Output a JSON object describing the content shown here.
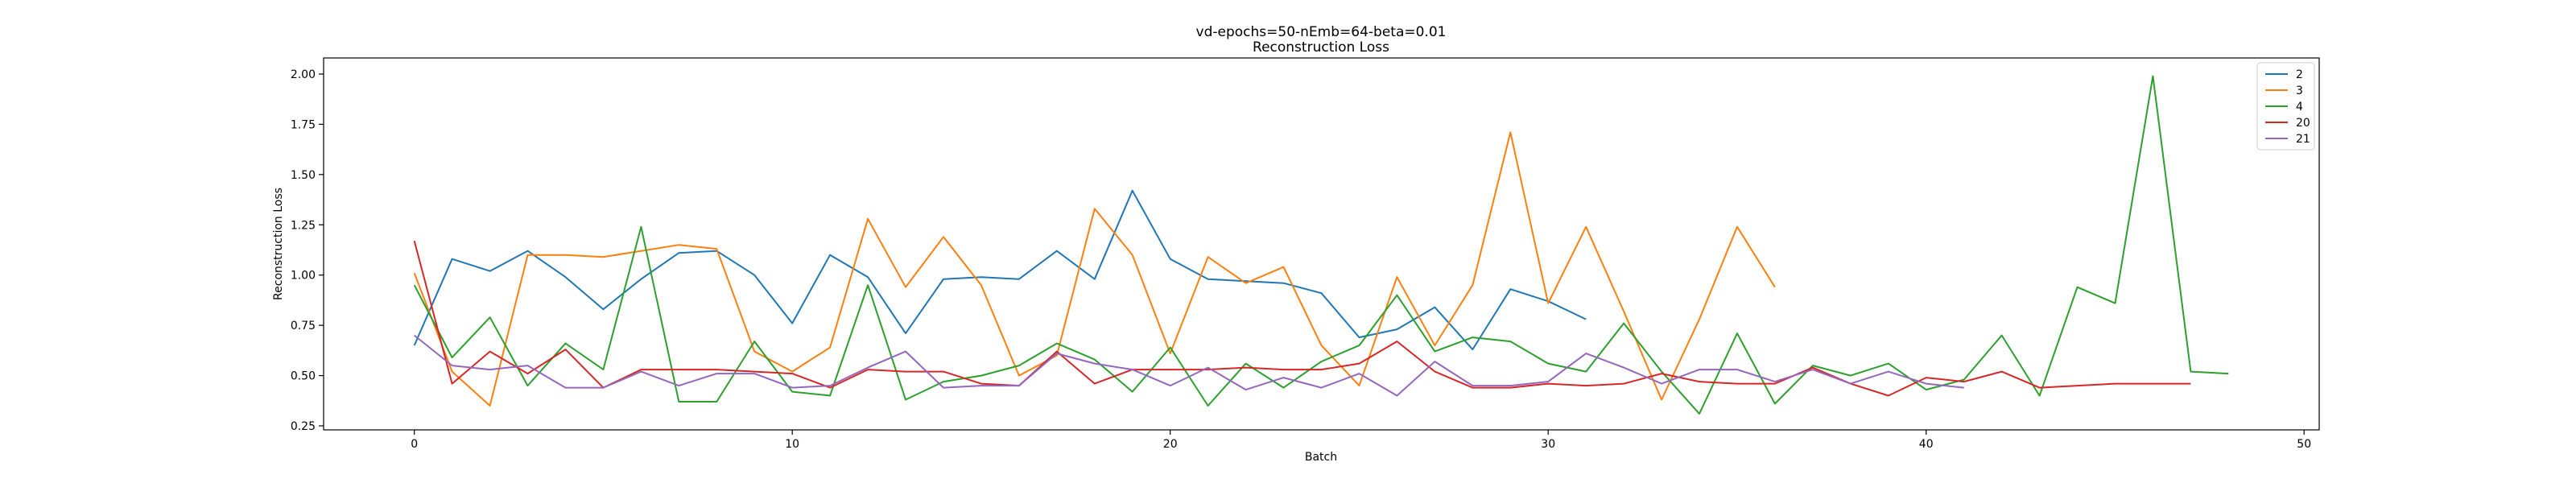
{
  "chart_data": {
    "type": "line",
    "title": "vd-epochs=50-nEmb=64-beta=0.01",
    "subtitle": "Reconstruction Loss",
    "xlabel": "Batch",
    "ylabel": "Reconstruction Loss",
    "xlim": [
      -2.4,
      50.4
    ],
    "ylim": [
      0.23,
      2.08
    ],
    "xticks": [
      0,
      10,
      20,
      30,
      40,
      50
    ],
    "yticks": [
      0.25,
      0.5,
      0.75,
      1.0,
      1.25,
      1.5,
      1.75,
      2.0
    ],
    "xtick_labels": [
      "0",
      "10",
      "20",
      "30",
      "40",
      "50"
    ],
    "ytick_labels": [
      "0.25",
      "0.50",
      "0.75",
      "1.00",
      "1.25",
      "1.50",
      "1.75",
      "2.00"
    ],
    "grid": false,
    "legend_position": "top-right",
    "series": [
      {
        "name": "2",
        "color": "#1f77b4",
        "values": [
          0.65,
          1.08,
          1.02,
          1.12,
          0.99,
          0.83,
          0.98,
          1.11,
          1.12,
          1.0,
          0.76,
          1.1,
          0.99,
          0.71,
          0.98,
          0.99,
          0.98,
          1.12,
          0.98,
          1.42,
          1.08,
          0.98,
          0.97,
          0.96,
          0.91,
          0.69,
          0.73,
          0.84,
          0.63,
          0.93,
          0.87,
          0.78
        ]
      },
      {
        "name": "3",
        "color": "#ff7f0e",
        "values": [
          1.01,
          0.52,
          0.35,
          1.1,
          1.1,
          1.09,
          1.12,
          1.15,
          1.13,
          0.62,
          0.52,
          0.64,
          1.28,
          0.94,
          1.19,
          0.95,
          0.5,
          0.6,
          1.33,
          1.1,
          0.61,
          1.09,
          0.96,
          1.04,
          0.65,
          0.45,
          0.99,
          0.65,
          0.95,
          1.71,
          0.86,
          1.24,
          0.82,
          0.38,
          0.78,
          1.24,
          0.94
        ]
      },
      {
        "name": "4",
        "color": "#2ca02c",
        "values": [
          0.95,
          0.59,
          0.79,
          0.45,
          0.66,
          0.53,
          1.24,
          0.37,
          0.37,
          0.67,
          0.42,
          0.4,
          0.95,
          0.38,
          0.47,
          0.5,
          0.55,
          0.66,
          0.58,
          0.42,
          0.64,
          0.35,
          0.56,
          0.44,
          0.57,
          0.65,
          0.9,
          0.62,
          0.69,
          0.67,
          0.56,
          0.52,
          0.76,
          0.52,
          0.31,
          0.71,
          0.36,
          0.55,
          0.5,
          0.56,
          0.43,
          0.48,
          0.7,
          0.4,
          0.94,
          0.86,
          1.99,
          0.52,
          0.51
        ]
      },
      {
        "name": "20",
        "color": "#d62728",
        "values": [
          1.17,
          0.46,
          0.62,
          0.51,
          0.63,
          0.44,
          0.53,
          0.53,
          0.53,
          0.52,
          0.51,
          0.44,
          0.53,
          0.52,
          0.52,
          0.46,
          0.45,
          0.62,
          0.46,
          0.53,
          0.53,
          0.53,
          0.54,
          0.53,
          0.53,
          0.56,
          0.67,
          0.52,
          0.44,
          0.44,
          0.46,
          0.45,
          0.46,
          0.51,
          0.47,
          0.46,
          0.46,
          0.54,
          0.46,
          0.4,
          0.49,
          0.47,
          0.52,
          0.44,
          0.45,
          0.46,
          0.46,
          0.46
        ]
      },
      {
        "name": "21",
        "color": "#9467bd",
        "values": [
          0.7,
          0.55,
          0.53,
          0.55,
          0.44,
          0.44,
          0.52,
          0.45,
          0.51,
          0.51,
          0.44,
          0.45,
          0.54,
          0.62,
          0.44,
          0.45,
          0.45,
          0.61,
          0.56,
          0.53,
          0.45,
          0.54,
          0.43,
          0.49,
          0.44,
          0.51,
          0.4,
          0.57,
          0.45,
          0.45,
          0.47,
          0.61,
          0.54,
          0.46,
          0.53,
          0.53,
          0.47,
          0.53,
          0.46,
          0.52,
          0.46,
          0.44
        ]
      }
    ]
  }
}
